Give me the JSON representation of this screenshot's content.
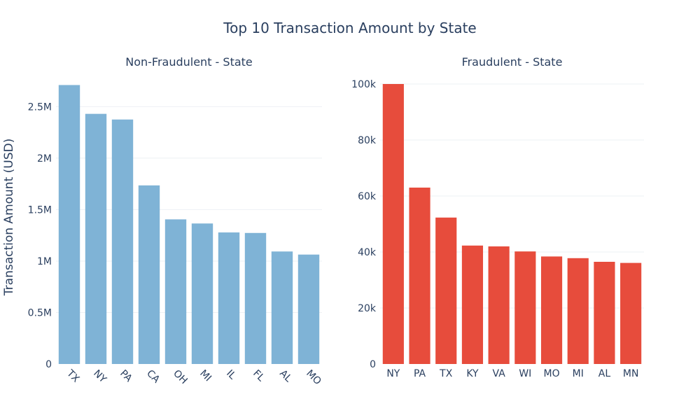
{
  "title": "Top 10 Transaction Amount by State",
  "shared_ylabel": "Transaction Amount (USD)",
  "colors": {
    "non_fraud": "#7fb3d6",
    "fraud": "#e74c3c",
    "grid": "#eef0f4",
    "text": "#2a3f5f"
  },
  "chart_data": [
    {
      "type": "bar",
      "title": "Non-Fraudulent - State",
      "categories": [
        "TX",
        "NY",
        "PA",
        "CA",
        "OH",
        "MI",
        "IL",
        "FL",
        "AL",
        "MO"
      ],
      "values": [
        2710000,
        2430000,
        2375000,
        1735000,
        1405000,
        1365000,
        1278000,
        1273000,
        1093000,
        1063000
      ],
      "ylabel": "Transaction Amount (USD)",
      "ylim": [
        0,
        2720000
      ],
      "yticks": [
        0,
        500000,
        1000000,
        1500000,
        2000000,
        2500000
      ],
      "ytick_labels": [
        "0",
        "0.5M",
        "1M",
        "1.5M",
        "2M",
        "2.5M"
      ],
      "xtick_rotation": "45deg",
      "grid": true
    },
    {
      "type": "bar",
      "title": "Fraudulent - State",
      "categories": [
        "NY",
        "PA",
        "TX",
        "KY",
        "VA",
        "WI",
        "MO",
        "MI",
        "AL",
        "MN"
      ],
      "values": [
        100000,
        63000,
        52300,
        42300,
        42000,
        40200,
        38400,
        37800,
        36500,
        36100
      ],
      "ylim": [
        0,
        100000
      ],
      "yticks": [
        0,
        20000,
        40000,
        60000,
        80000,
        100000
      ],
      "ytick_labels": [
        "0",
        "20k",
        "40k",
        "60k",
        "80k",
        "100k"
      ],
      "xtick_rotation": "0deg",
      "grid": true
    }
  ]
}
